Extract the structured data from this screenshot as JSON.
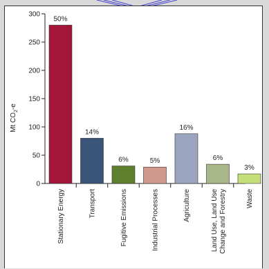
{
  "chart_data": {
    "type": "bar",
    "ylabel": "Mt CO₂-e",
    "ylabel_main": "Mt CO",
    "ylabel_sub": "2",
    "ylabel_tail": "-e",
    "ylim": [
      0,
      300
    ],
    "yticks": [
      0,
      50,
      100,
      150,
      200,
      250,
      300
    ],
    "grid": false,
    "categories": [
      [
        "Stationary Energy"
      ],
      [
        "Transport"
      ],
      [
        "Fugitive Emissions"
      ],
      [
        "Industrial Processes"
      ],
      [
        "Agriculture"
      ],
      [
        "Land Use, Land Use",
        "Change and Forestry"
      ],
      [
        "Waste"
      ]
    ],
    "values": [
      280,
      80,
      31,
      29,
      88,
      34,
      17
    ],
    "percent_labels": [
      "50%",
      "14%",
      "6%",
      "5%",
      "16%",
      "6%",
      "3%"
    ],
    "colors": [
      "#a3163a",
      "#3b5578",
      "#5e7f2e",
      "#d29a8e",
      "#9aa4be",
      "#a7b78a",
      "#c5df7a"
    ]
  }
}
